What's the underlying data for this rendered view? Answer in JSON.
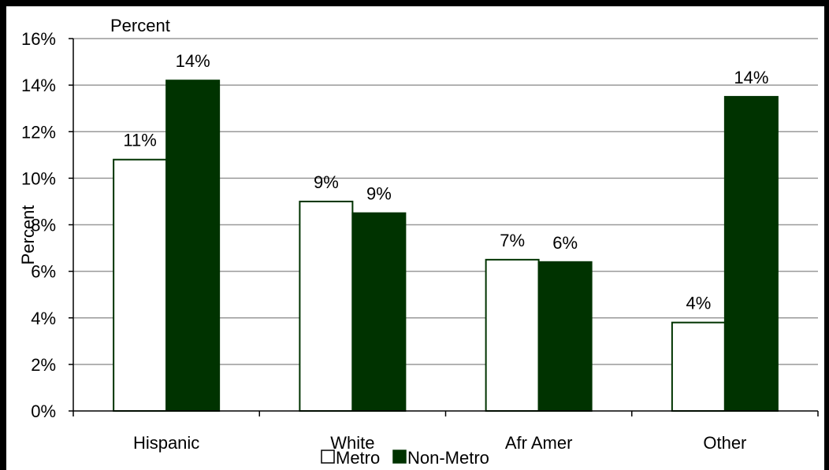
{
  "chart_data": {
    "type": "bar",
    "title": "Percent",
    "ylabel": "Percent",
    "xlabel": "",
    "categories": [
      "Hispanic",
      "White",
      "Afr Amer",
      "Other"
    ],
    "series": [
      {
        "name": "Metro",
        "values": [
          10.8,
          9.0,
          6.5,
          3.8
        ],
        "labels": [
          "11%",
          "9%",
          "7%",
          "4%"
        ],
        "color": "#ffffff",
        "stroke": "#003300"
      },
      {
        "name": "Non-Metro",
        "values": [
          14.2,
          8.5,
          6.4,
          13.5
        ],
        "labels": [
          "14%",
          "9%",
          "6%",
          "14%"
        ],
        "color": "#003300",
        "stroke": "#003300"
      }
    ],
    "ylim": [
      0,
      16
    ],
    "yticks": [
      0,
      2,
      4,
      6,
      8,
      10,
      12,
      14,
      16
    ],
    "ytick_labels": [
      "0%",
      "2%",
      "4%",
      "6%",
      "8%",
      "10%",
      "12%",
      "14%",
      "16%"
    ],
    "grid": true,
    "grid_color": "#999999",
    "legend_position": "bottom"
  }
}
